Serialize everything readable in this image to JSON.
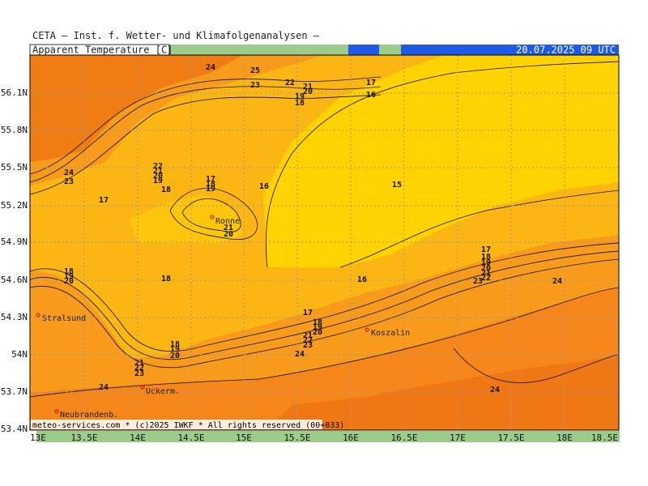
{
  "header": {
    "title": "CETA — Inst. f. Wetter- und Klimafolgenanalysen —"
  },
  "legend": {
    "label": "Apparent Temperature [C]",
    "date": "20.07.2025 09 UTC"
  },
  "axes": {
    "lat_labels": [
      "56.1N",
      "55.8N",
      "55.5N",
      "55.2N",
      "54.9N",
      "54.6N",
      "54.3N",
      "54N",
      "53.7N",
      "53.4N"
    ],
    "lon_labels": [
      "13E",
      "13.5E",
      "14E",
      "14.5E",
      "15E",
      "15.5E",
      "16E",
      "16.5E",
      "17E",
      "17.5E",
      "18E",
      "18.5E"
    ]
  },
  "cities": [
    "Ronne",
    "Stralsund",
    "Koszalin",
    "Uckerm.",
    "Neubrandenb."
  ],
  "contour_labels": [
    24,
    25,
    23,
    22,
    21,
    20,
    19,
    18,
    17,
    16,
    24,
    23,
    22,
    21,
    20,
    19,
    18,
    17,
    18,
    19,
    16,
    15,
    17,
    21,
    20,
    18,
    19,
    20,
    18,
    16,
    17,
    18,
    19,
    20,
    21,
    22,
    23,
    24,
    17,
    18,
    19,
    20,
    21,
    22,
    23,
    24,
    18,
    19,
    20,
    21,
    22,
    23,
    24,
    24
  ],
  "footer": "meteo-services.com * (c)2025 IWKF * All rights reserved (00+033)"
}
